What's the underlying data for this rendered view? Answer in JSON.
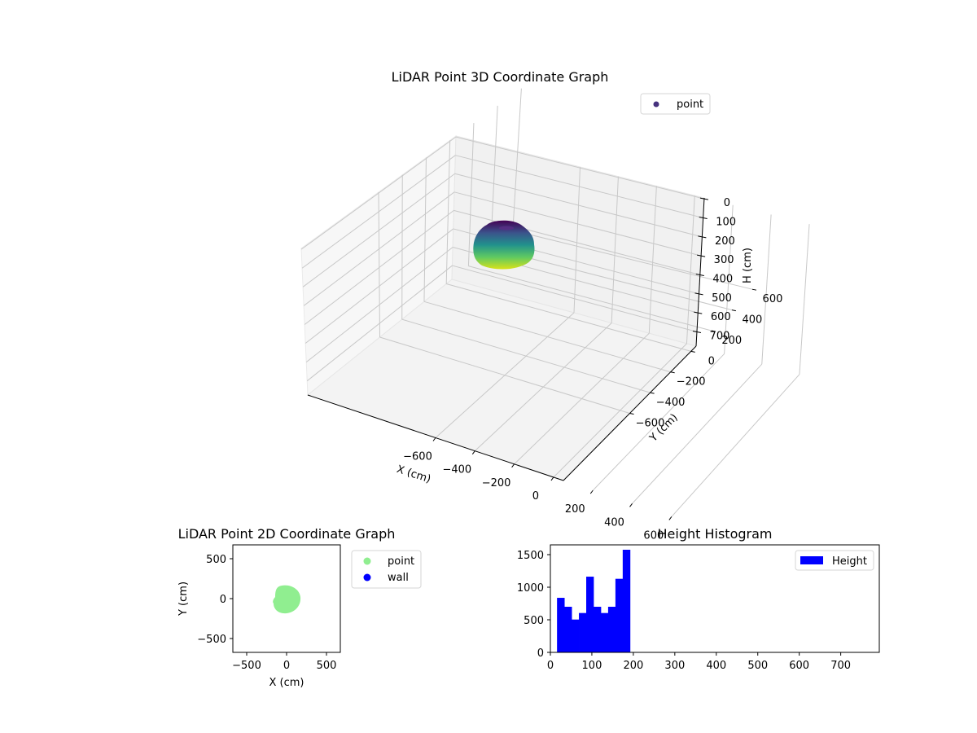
{
  "chart_data": [
    {
      "type": "scatter3d",
      "title": "LiDAR Point 3D Coordinate Graph",
      "xlabel": "X (cm)",
      "ylabel": "Y (cm)",
      "zlabel": "H (cm)",
      "xticks": [
        "−600",
        "−400",
        "−200",
        "0",
        "200",
        "400",
        "600"
      ],
      "yticks": [
        "−600",
        "−400",
        "−200",
        "0",
        "200",
        "400",
        "600"
      ],
      "zticks": [
        "0",
        "100",
        "200",
        "300",
        "400",
        "500",
        "600",
        "700"
      ],
      "xlim": [
        -650,
        650
      ],
      "ylim": [
        -650,
        650
      ],
      "zlim": [
        0,
        780
      ],
      "z_inverted": true,
      "colormap": "viridis",
      "legend": [
        {
          "label": "point",
          "color": "#46327e"
        }
      ],
      "legend_position": "upper right",
      "cluster": {
        "center_x": 0,
        "center_y": 0,
        "radius": 175,
        "h_min": 15,
        "h_max": 195
      }
    },
    {
      "type": "scatter",
      "title": "LiDAR Point 2D Coordinate Graph",
      "xlabel": "X (cm)",
      "ylabel": "Y (cm)",
      "xticks": [
        "−500",
        "0",
        "500"
      ],
      "yticks": [
        "500",
        "0",
        "−500"
      ],
      "xlim": [
        -680,
        680
      ],
      "ylim": [
        -680,
        680
      ],
      "legend": [
        {
          "label": "point",
          "color": "#90ee90"
        },
        {
          "label": "wall",
          "color": "#0000ff"
        }
      ],
      "legend_position": "outside right",
      "series": [
        {
          "name": "point",
          "color": "#90ee90",
          "shape": "disc",
          "center": [
            0,
            0
          ],
          "radius": 175
        },
        {
          "name": "wall",
          "color": "#0000ff",
          "points": []
        }
      ]
    },
    {
      "type": "bar",
      "title": "Height Histogram",
      "xlabel": "",
      "ylabel": "",
      "xlim": [
        0,
        793
      ],
      "ylim": [
        0,
        1650
      ],
      "xticks": [
        "0",
        "100",
        "200",
        "300",
        "400",
        "500",
        "600",
        "700"
      ],
      "yticks": [
        "0",
        "500",
        "1000",
        "1500"
      ],
      "legend": [
        {
          "label": "Height",
          "color": "#0000ff"
        }
      ],
      "legend_position": "upper right",
      "bin_edges": [
        16,
        33.6,
        51.2,
        68.8,
        86.4,
        104,
        121.6,
        139.2,
        156.8,
        174.4,
        192
      ],
      "values": [
        837,
        700,
        504,
        604,
        1162,
        700,
        604,
        700,
        1129,
        1575
      ],
      "color": "#0000ff"
    }
  ]
}
